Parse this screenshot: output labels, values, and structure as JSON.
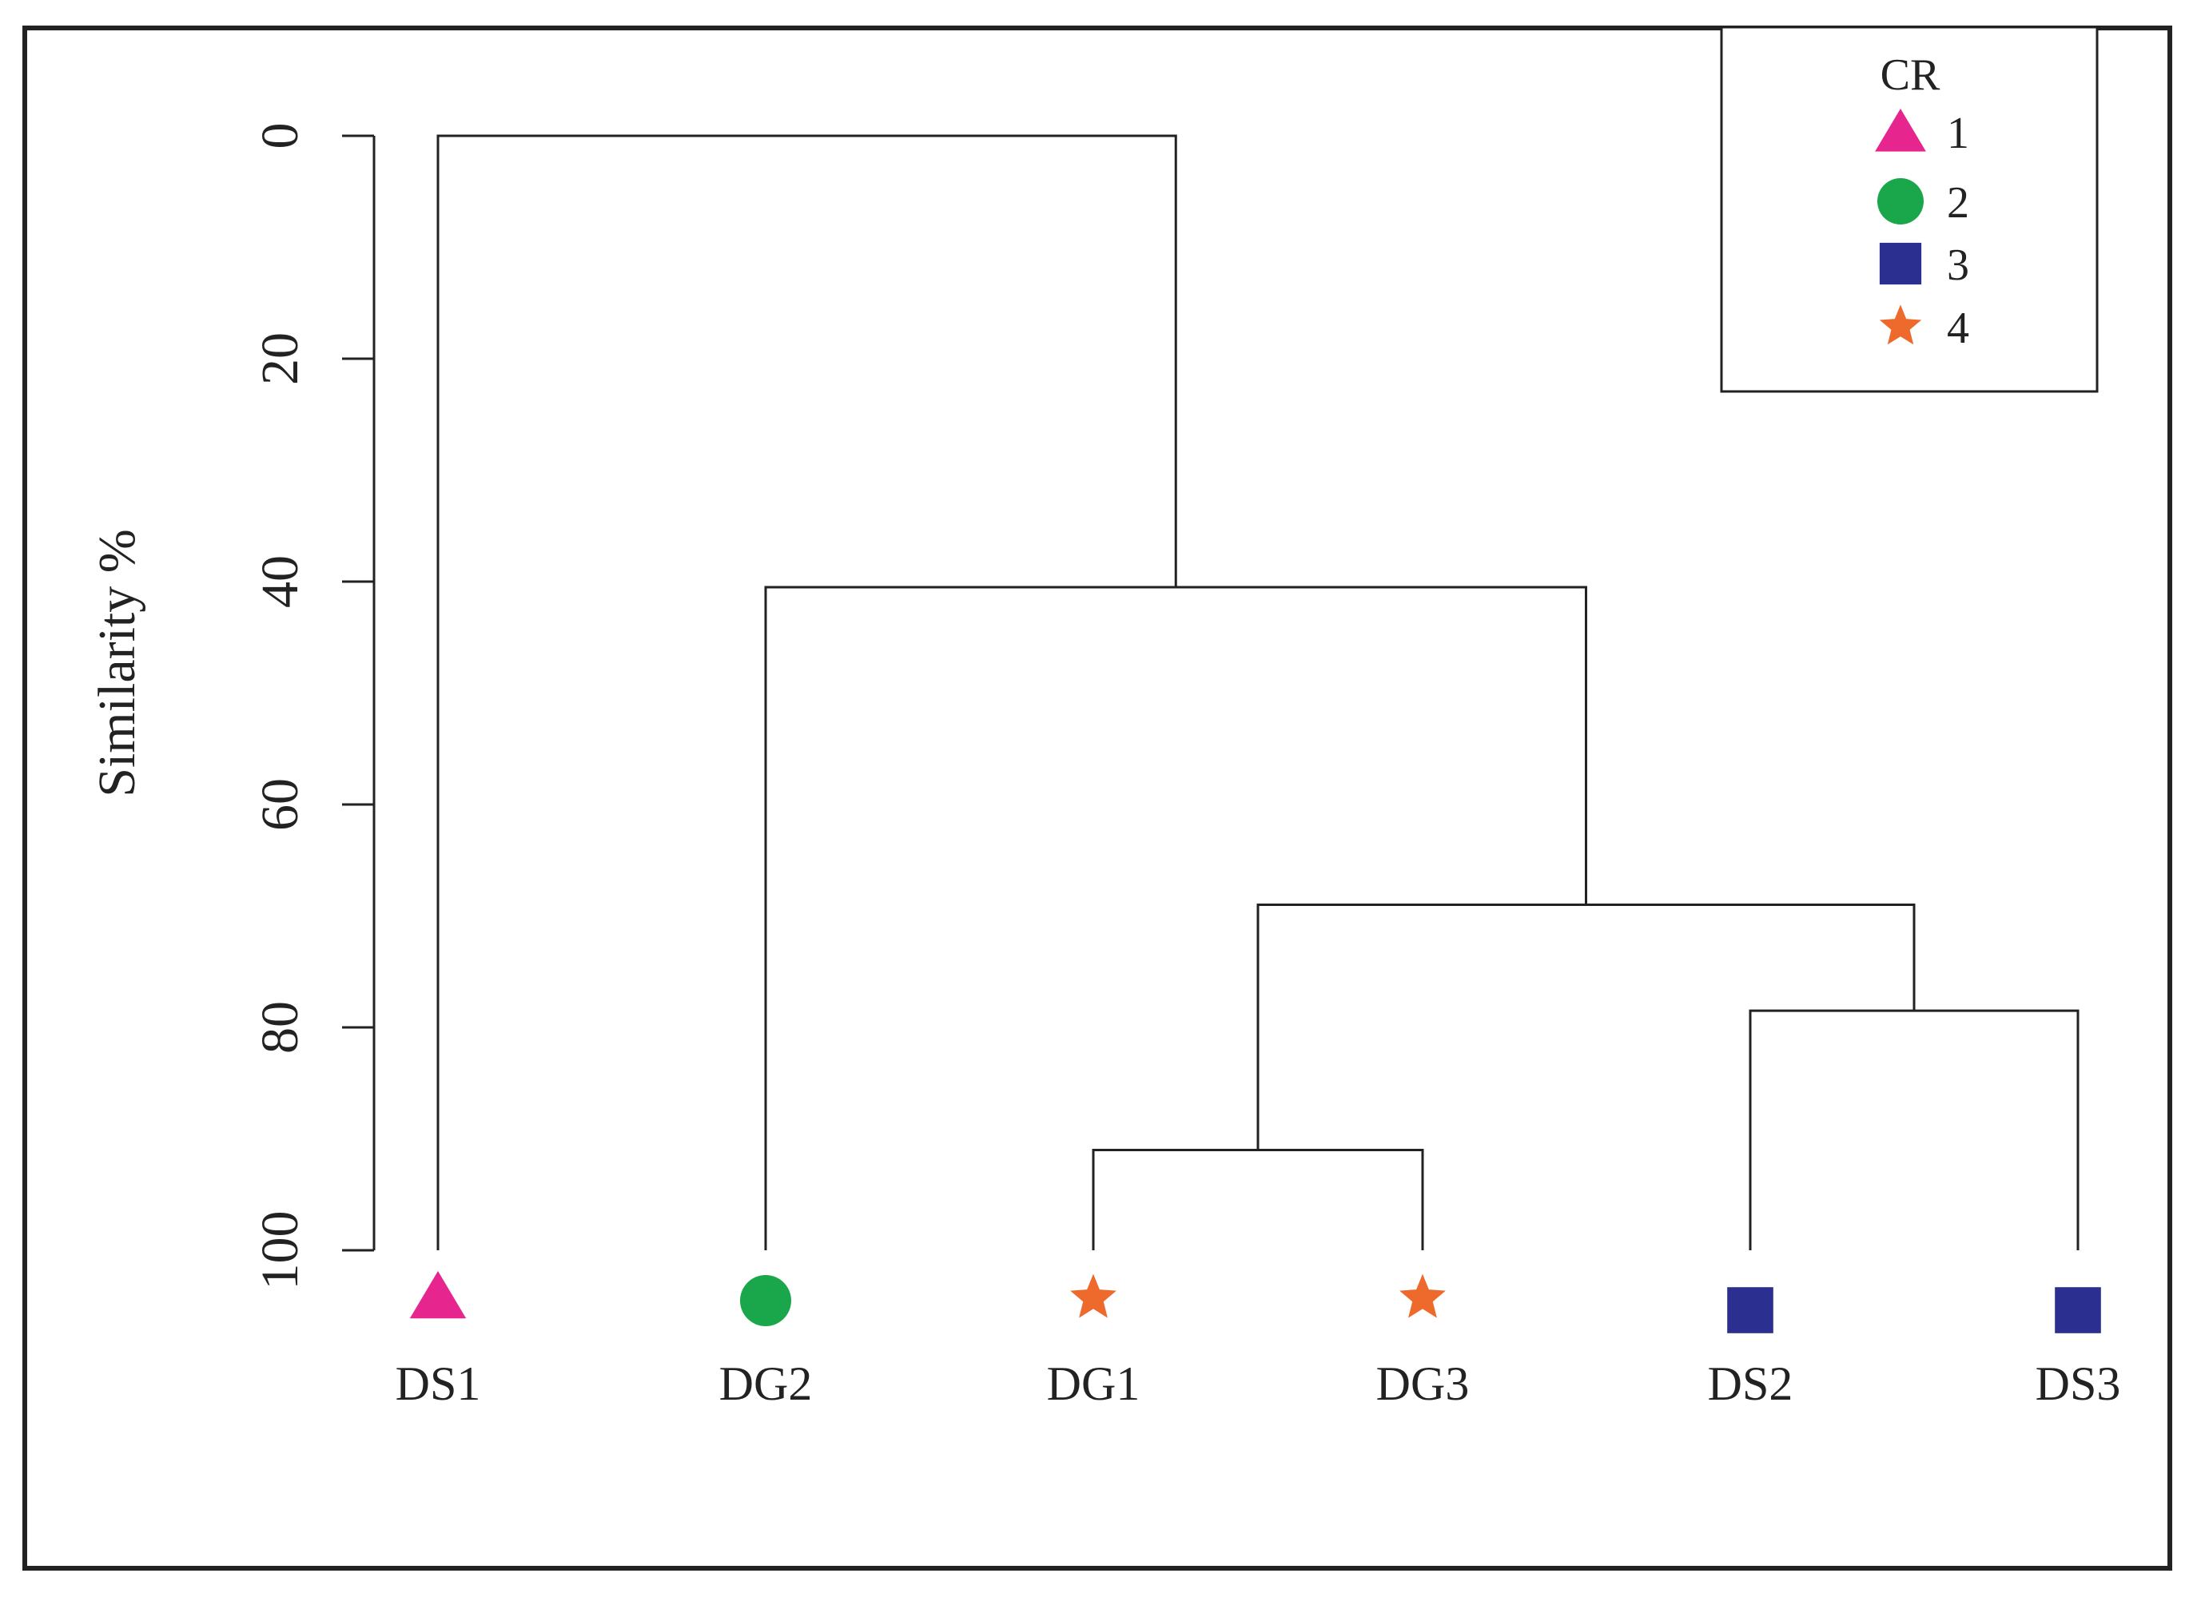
{
  "chart_data": {
    "type": "dendrogram",
    "ylabel": "Similarity %",
    "yticks": [
      0,
      20,
      40,
      60,
      80,
      100
    ],
    "ylim": [
      0,
      100
    ],
    "y_inverted": true,
    "leaves": [
      {
        "label": "DS1",
        "group": "1"
      },
      {
        "label": "DG2",
        "group": "2"
      },
      {
        "label": "DG1",
        "group": "4"
      },
      {
        "label": "DG3",
        "group": "4"
      },
      {
        "label": "DS2",
        "group": "3"
      },
      {
        "label": "DS3",
        "group": "3"
      }
    ],
    "merges": [
      {
        "left": "DG1",
        "right": "DG3",
        "similarity": 91
      },
      {
        "left": "DS2",
        "right": "DS3",
        "similarity": 78.5
      },
      {
        "left": "DG1+DG3",
        "right": "DS2+DS3",
        "similarity": 69
      },
      {
        "left": "DG2",
        "right": "DG1+DG3+DS2+DS3",
        "similarity": 40.5
      },
      {
        "left": "DS1",
        "right": "DG2+DG1+DG3+DS2+DS3",
        "similarity": 0
      }
    ],
    "legend": {
      "title": "CR",
      "position": "top-right",
      "entries": [
        {
          "label": "1",
          "shape": "triangle",
          "color": "#e6258f"
        },
        {
          "label": "2",
          "shape": "circle",
          "color": "#1aa64a"
        },
        {
          "label": "3",
          "shape": "square",
          "color": "#2b2f8f"
        },
        {
          "label": "4",
          "shape": "star",
          "color": "#ee6a2c"
        }
      ]
    },
    "line_color": "#222222"
  }
}
